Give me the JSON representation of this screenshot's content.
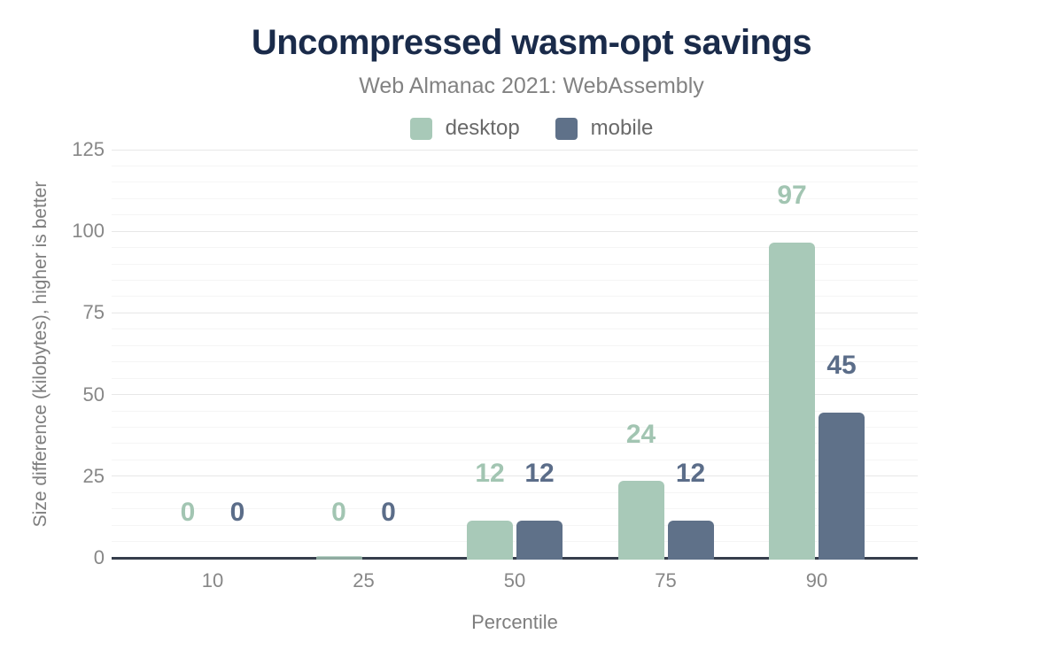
{
  "header": {
    "title": "Uncompressed wasm-opt savings",
    "subtitle": "Web Almanac 2021: WebAssembly"
  },
  "chart_data": {
    "type": "bar",
    "title": "Uncompressed wasm-opt savings",
    "subtitle": "Web Almanac 2021: WebAssembly",
    "categories": [
      "10",
      "25",
      "50",
      "75",
      "90"
    ],
    "series": [
      {
        "name": "desktop",
        "color": "#a8c9b8",
        "label_color": "#a2c5b2",
        "values": [
          0,
          0.4,
          12,
          24,
          97
        ],
        "labels": [
          "0",
          "0",
          "12",
          "24",
          "97"
        ]
      },
      {
        "name": "mobile",
        "color": "#5f7189",
        "label_color": "#5b6d89",
        "values": [
          0,
          0,
          12,
          12,
          45
        ],
        "labels": [
          "0",
          "0",
          "12",
          "12",
          "45"
        ]
      }
    ],
    "xlabel": "Percentile",
    "ylabel": "Size difference (kilobytes), higher is better",
    "ylim": [
      0,
      125
    ],
    "yticks": [
      0,
      25,
      50,
      75,
      100,
      125
    ],
    "minor_grid_step": 5,
    "grid": true,
    "legend_position": "top",
    "colors": {
      "title": "#1a2b4a",
      "axis_line": "#363e4c",
      "tick_text": "#878787",
      "major_grid": "#e7e7e7",
      "minor_grid": "#f5f5f5"
    }
  }
}
